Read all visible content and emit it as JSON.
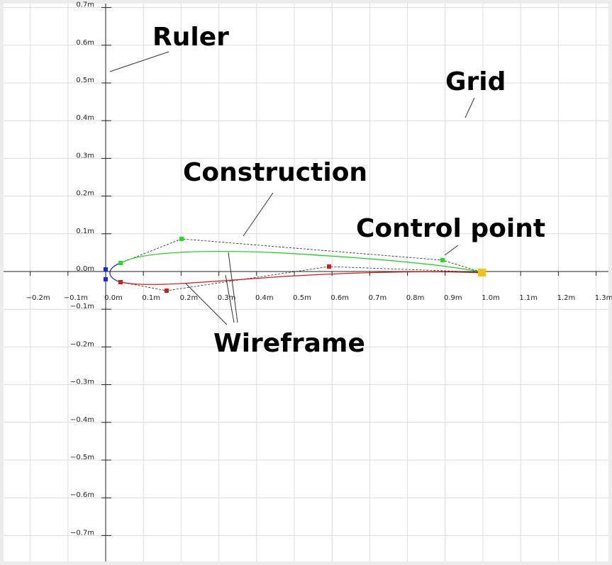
{
  "x_ruler": [
    "−0.2m",
    "−0.1m",
    "0.0m",
    "0.1m",
    "0.2m",
    "0.3m",
    "0.4m",
    "0.5m",
    "0.6m",
    "0.7m",
    "0.8m",
    "0.9m",
    "1.0m",
    "1.1m",
    "1.2m",
    "1.3m"
  ],
  "y_ruler": [
    "0.7m",
    "0.6m",
    "0.5m",
    "0.4m",
    "0.3m",
    "0.2m",
    "0.1m",
    "0.0m",
    "−0.1m",
    "−0.2m",
    "−0.3m",
    "−0.4m",
    "−0.5m",
    "−0.6m",
    "−0.7m"
  ],
  "annotations": {
    "ruler": "Ruler",
    "grid": "Grid",
    "construction": "Construction",
    "control_point": "Control point",
    "wireframe": "Wireframe"
  }
}
